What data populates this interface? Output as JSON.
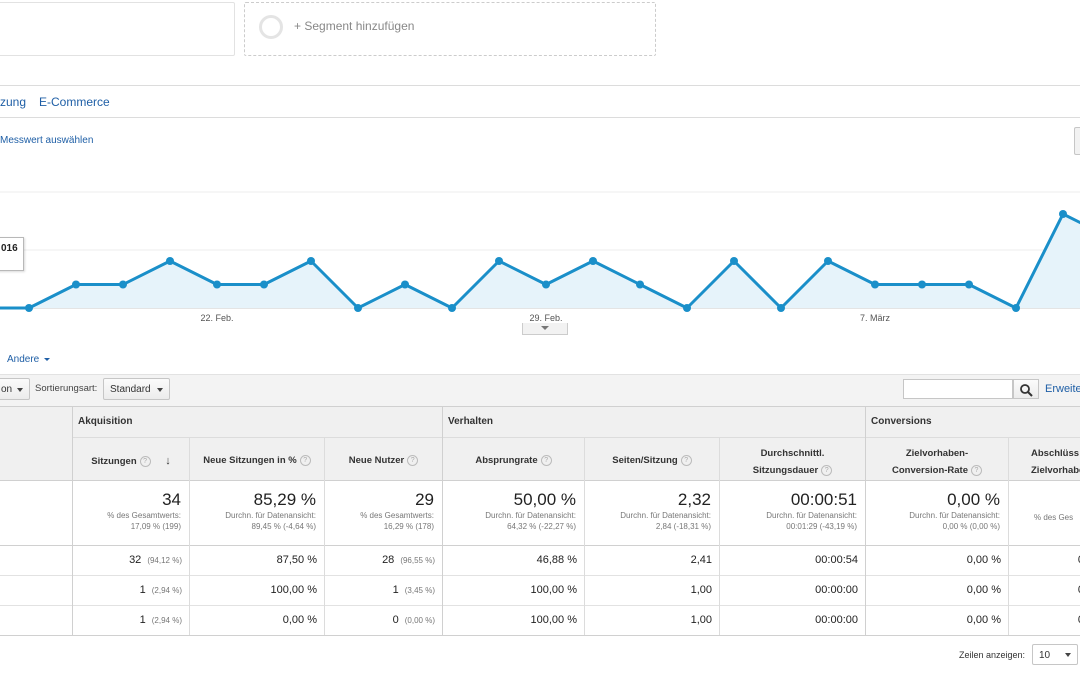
{
  "segment": {
    "add_label": "+ Segment hinzufügen"
  },
  "tabs": [
    {
      "label": "zung"
    },
    {
      "label": "E-Commerce"
    }
  ],
  "metric_link": "Messwert auswählen",
  "tooltip_text": "016",
  "chart_data": {
    "type": "area",
    "series": [
      {
        "values": [
          0,
          0,
          1,
          1,
          2,
          1,
          1,
          2,
          0,
          1,
          0,
          2,
          1,
          2,
          1,
          0,
          2,
          0,
          2,
          1,
          1,
          1,
          0,
          4,
          3
        ]
      }
    ],
    "x_tick_labels": [
      "22. Feb.",
      "29. Feb.",
      "7. März"
    ],
    "grid": true,
    "colors": {
      "line": "#1a8fc9",
      "fill": "#e6f3fa"
    }
  },
  "andere_link": "Andere",
  "toolbar": {
    "dimension_select": "on",
    "sort_label": "Sortierungsart:",
    "sort_value": "Standard",
    "erweitert_link": "Erweite"
  },
  "table": {
    "groups": {
      "akquisition": "Akquisition",
      "verhalten": "Verhalten",
      "conversions": "Conversions"
    },
    "headers": {
      "sitzungen": "Sitzungen",
      "neue_sitzungen": "Neue Sitzungen in %",
      "neue_nutzer": "Neue Nutzer",
      "absprungrate": "Absprungrate",
      "seiten": "Seiten/Sitzung",
      "dauer_1": "Durchschnittl.",
      "dauer_2": "Sitzungsdauer",
      "cr_1": "Zielvorhaben-",
      "cr_2": "Conversion-Rate",
      "abs_1": "Abschlüss",
      "abs_2": "Zielvorhabe"
    },
    "totals": {
      "sitzungen": {
        "value": "34",
        "sub1": "% des Gesamtwerts:",
        "sub2": "17,09 % (199)"
      },
      "neue_sitzungen": {
        "value": "85,29 %",
        "sub1": "Durchn. für Datenansicht:",
        "sub2": "89,45 % (-4,64 %)"
      },
      "neue_nutzer": {
        "value": "29",
        "sub1": "% des Gesamtwerts:",
        "sub2": "16,29 % (178)"
      },
      "absprungrate": {
        "value": "50,00 %",
        "sub1": "Durchn. für Datenansicht:",
        "sub2": "64,32 % (-22,27 %)"
      },
      "seiten": {
        "value": "2,32",
        "sub1": "Durchn. für Datenansicht:",
        "sub2": "2,84 (-18,31 %)"
      },
      "dauer": {
        "value": "00:00:51",
        "sub1": "Durchn. für Datenansicht:",
        "sub2": "00:01:29 (-43,19 %)"
      },
      "cr": {
        "value": "0,00 %",
        "sub1": "Durchn. für Datenansicht:",
        "sub2": "0,00 % (0,00 %)"
      },
      "abs": {
        "sub1": "% des Ges"
      }
    },
    "rows": [
      {
        "sitzungen": "32",
        "sitzungen_pct": "(94,12 %)",
        "neue_sitzungen": "87,50 %",
        "neue_nutzer": "28",
        "neue_nutzer_pct": "(96,55 %)",
        "absprungrate": "46,88 %",
        "seiten": "2,41",
        "dauer": "00:00:54",
        "cr": "0,00 %",
        "abs": "0"
      },
      {
        "sitzungen": "1",
        "sitzungen_pct": "(2,94 %)",
        "neue_sitzungen": "100,00 %",
        "neue_nutzer": "1",
        "neue_nutzer_pct": "(3,45 %)",
        "absprungrate": "100,00 %",
        "seiten": "1,00",
        "dauer": "00:00:00",
        "cr": "0,00 %",
        "abs": "0"
      },
      {
        "sitzungen": "1",
        "sitzungen_pct": "(2,94 %)",
        "neue_sitzungen": "0,00 %",
        "neue_nutzer": "0",
        "neue_nutzer_pct": "(0,00 %)",
        "absprungrate": "100,00 %",
        "seiten": "1,00",
        "dauer": "00:00:00",
        "cr": "0,00 %",
        "abs": "0"
      }
    ]
  },
  "footer": {
    "rows_label": "Zeilen anzeigen:",
    "rows_value": "10"
  }
}
